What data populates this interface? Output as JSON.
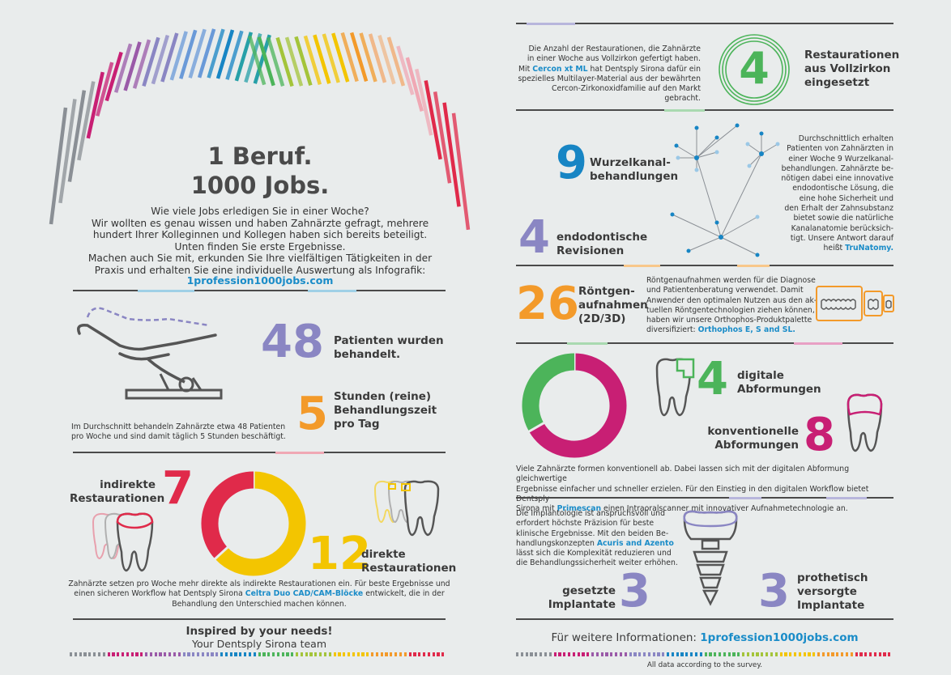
{
  "colors": {
    "purple": "#8a86c3",
    "orange": "#f39a2a",
    "green": "#4cb45a",
    "blue": "#1785c4",
    "red": "#e02a4a",
    "yellow": "#f3c500",
    "magenta": "#c81f74",
    "text": "#3c3c3c",
    "link": "#1a8cc8"
  },
  "title": {
    "line1": "1 Beruf.",
    "line2": "1000 Jobs."
  },
  "intro": {
    "lines": [
      "Wie viele Jobs erledigen Sie in einer Woche?",
      "Wir wollten es genau wissen und haben Zahnärzte gefragt, mehrere",
      "hundert Ihrer Kolleginnen und Kollegen haben sich bereits beteiligt.",
      "Unten finden Sie erste Ergebnisse.",
      "Machen auch Sie mit, erkunden Sie Ihre vielfältigen Tätigkeiten in der",
      "Praxis und erhalten Sie eine individuelle Auswertung als Infografik:"
    ],
    "link": "1profession1000jobs.com"
  },
  "patients": {
    "value": "48",
    "label1": "Patienten wurden",
    "label2": "behandelt."
  },
  "hours": {
    "value": "5",
    "label1": "Stunden (reine)",
    "label2": "Behandlungszeit",
    "label3": "pro Tag"
  },
  "patients_note": {
    "line1": "Im Durchschnitt behandeln Zahnärzte etwa 48 Patienten",
    "line2": "pro Woche und sind damit täglich 5 Stunden beschäftigt."
  },
  "indirect": {
    "value": "7",
    "label1": "indirekte",
    "label2": "Restaurationen"
  },
  "direct": {
    "value": "12",
    "label1": "direkte",
    "label2": "Restaurationen"
  },
  "restorations_donut": {
    "indirect_share": 0.368,
    "direct_share": 0.632
  },
  "restorations_note": {
    "line1": "Zahnärzte setzen pro Woche mehr direkte als indirekte Restaurationen ein. Für beste Ergebnisse und",
    "line2a": "einen sicheren Workflow hat Dentsply Sirona ",
    "line2b": "Celtra Duo CAD/CAM-Blöcke",
    "line2c": " entwickelt, die in der",
    "line3": "Behandlung den Unterschied machen können."
  },
  "footer_left": {
    "line1": "Inspired by your needs!",
    "line2": "Your Dentsply Sirona team"
  },
  "zirkon": {
    "value": "4",
    "label1": "Restaurationen",
    "label2": "aus Vollzirkon",
    "label3": "eingesetzt",
    "t1": "Die Anzahl der Restaurationen, die Zahnärzte",
    "t2": "in einer Woche aus Vollzirkon gefertigt haben.",
    "t3a": "Mit ",
    "t3b": "Cercon xt ML",
    "t3c": " hat Dentsply Sirona dafür ein",
    "t4": "spezielles Multilayer-Material aus der bewährten",
    "t5": "Cercon-Zirkonoxidfamilie auf den Markt gebracht."
  },
  "root_canal": {
    "value": "9",
    "label1": "Wurzelkanal-",
    "label2": "behandlungen"
  },
  "endo": {
    "value": "4",
    "label1": "endodontische",
    "label2": "Revisionen"
  },
  "endo_note": {
    "lines": [
      "Durchschnittlich erhalten",
      "Patienten von Zahnärzten in",
      "einer Woche 9 Wurzelkanal-",
      "behandlungen. Zahnärzte be-",
      "nötigen dabei eine innovative",
      "endodontische Lösung, die",
      "eine hohe Sicherheit und",
      "den Erhalt der Zahnsubstanz",
      "bietet sowie die natürliche",
      "Kanalanatomie berücksich-",
      "tigt. Unsere Antwort darauf"
    ],
    "last_a": "heißt ",
    "last_b": "TruNatomy."
  },
  "xray": {
    "value": "26",
    "label1": "Röntgen-",
    "label2": "aufnahmen",
    "label3": "(2D/3D)",
    "lines": [
      "Röntgenaufnahmen werden für die Diagnose",
      "und Patientenberatung verwendet. Damit",
      "Anwender den optimalen Nutzen aus den ak-",
      "tuellen Röntgentechnologien ziehen können,",
      "haben wir unsere Orthophos-Produktpalette"
    ],
    "last_a": "diversifiziert:  ",
    "last_b": "Orthophos E, S and SL."
  },
  "digital": {
    "value": "4",
    "label1": "digitale",
    "label2": "Abformungen"
  },
  "conventional": {
    "value": "8",
    "label1": "konventionelle",
    "label2": "Abformungen"
  },
  "impressions_donut": {
    "digital_share": 0.333,
    "conventional_share": 0.667
  },
  "impressions_note": {
    "line1": "Viele Zahnärzte formen konventionell ab. Dabei lassen sich mit der digitalen Abformung gleichwertige",
    "line2": "Ergebnisse einfacher und schneller erzielen. Für den Einstieg in den digitalen Workflow bietet Dentsply",
    "line3a": "Sirona mit ",
    "line3b": "Primescan",
    "line3c": " einen Intraoralscanner mit innovativer Aufnahmetechnologie an."
  },
  "implant_note": {
    "lines": [
      "Die Implantologie ist anspruchsvoll und",
      "erfordert höchste Präzision für beste",
      "klinische Ergebnisse. Mit den beiden Be-"
    ],
    "l4a": "handlungskonzepten ",
    "l4b": "Acuris and Azento",
    "l5": "lässt sich die Komplexität reduzieren und",
    "l6": "die Behandlungssicherheit weiter erhöhen."
  },
  "implants": {
    "value": "3",
    "label1": "gesetzte",
    "label2": "Implantate"
  },
  "prosthetic": {
    "value": "3",
    "label1": "prothetisch",
    "label2": "versorgte",
    "label3": "Implantate"
  },
  "footer_right": {
    "prefix": "Für weitere Informationen: ",
    "link": "1profession1000jobs.com",
    "note": "All data according to the survey."
  }
}
